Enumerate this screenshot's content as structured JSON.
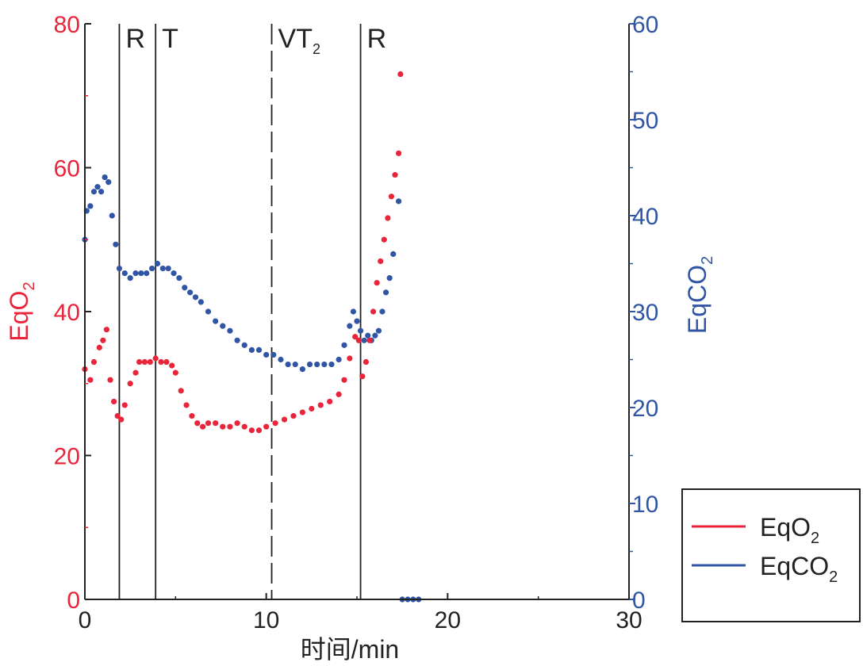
{
  "chart_data": {
    "type": "scatter",
    "xlabel": "时间/min",
    "ylabel_left": {
      "base": "EqO",
      "sub": "2"
    },
    "ylabel_right": {
      "base": "EqCO",
      "sub": "2"
    },
    "xlim": [
      0,
      30
    ],
    "ylim_left": [
      0,
      80
    ],
    "ylim_right": [
      0,
      60
    ],
    "x_ticks": [
      "0",
      "10",
      "20",
      "30"
    ],
    "y_left_ticks": [
      "0",
      "20",
      "40",
      "60",
      "80"
    ],
    "y_right_ticks": [
      "0",
      "10",
      "20",
      "30",
      "40",
      "50",
      "60"
    ],
    "grid": false,
    "legend_position": "bottom-right",
    "colors": {
      "eqo2": "#e8253a",
      "eqco2": "#2f55a4",
      "axis": "#222222"
    },
    "phase_lines": [
      {
        "x": 1.9,
        "style": "solid",
        "label": "R"
      },
      {
        "x": 3.9,
        "style": "solid",
        "label": "T"
      },
      {
        "x": 10.3,
        "style": "dashed",
        "label": "VT",
        "label_sub": "2"
      },
      {
        "x": 15.2,
        "style": "solid",
        "label": "R"
      }
    ],
    "series": [
      {
        "name": "EqO",
        "name_sub": "2",
        "axis": "left",
        "color": "#e8253a",
        "x": [
          0.0,
          0.3,
          0.5,
          0.8,
          1.0,
          1.2,
          1.4,
          1.6,
          1.8,
          2.0,
          2.2,
          2.5,
          2.8,
          3.0,
          3.3,
          3.6,
          3.9,
          4.2,
          4.5,
          4.8,
          5.0,
          5.3,
          5.6,
          5.9,
          6.2,
          6.5,
          6.8,
          7.2,
          7.6,
          8.0,
          8.4,
          8.8,
          9.2,
          9.6,
          10.0,
          10.5,
          11.0,
          11.5,
          12.0,
          12.5,
          13.0,
          13.5,
          14.0,
          14.3,
          14.6,
          14.9,
          15.1,
          15.3,
          15.5,
          15.7,
          15.9,
          16.1,
          16.3,
          16.5,
          16.7,
          16.9,
          17.1,
          17.3,
          17.4
        ],
        "y": [
          32.0,
          30.5,
          33.0,
          35.0,
          36.0,
          37.5,
          30.5,
          27.5,
          25.5,
          25.0,
          27.0,
          30.0,
          31.5,
          33.0,
          33.0,
          33.0,
          33.5,
          33.0,
          33.0,
          32.5,
          31.5,
          29.0,
          27.0,
          25.5,
          24.5,
          24.0,
          24.5,
          24.5,
          24.0,
          24.0,
          24.5,
          24.0,
          23.5,
          23.5,
          24.0,
          24.5,
          25.0,
          25.5,
          26.0,
          26.5,
          27.0,
          27.5,
          28.5,
          30.5,
          33.5,
          36.5,
          36.0,
          31.0,
          33.0,
          36.0,
          40.0,
          44.0,
          47.0,
          50.0,
          53.0,
          56.0,
          59.0,
          62.0,
          73.0
        ]
      },
      {
        "name": "EqCO",
        "name_sub": "2",
        "axis": "right",
        "color": "#2f55a4",
        "x": [
          0.0,
          0.1,
          0.3,
          0.5,
          0.7,
          0.9,
          1.1,
          1.3,
          1.5,
          1.7,
          1.9,
          2.2,
          2.5,
          2.8,
          3.1,
          3.4,
          3.7,
          4.0,
          4.3,
          4.6,
          4.9,
          5.2,
          5.5,
          5.8,
          6.1,
          6.4,
          6.8,
          7.2,
          7.6,
          8.0,
          8.4,
          8.8,
          9.2,
          9.6,
          10.0,
          10.4,
          10.8,
          11.2,
          11.6,
          12.0,
          12.4,
          12.8,
          13.2,
          13.6,
          14.0,
          14.3,
          14.6,
          14.8,
          15.0,
          15.2,
          15.4,
          15.6,
          15.8,
          16.0,
          16.2,
          16.4,
          16.6,
          16.8,
          17.0,
          17.3,
          17.5,
          17.8,
          18.1,
          18.4
        ],
        "y": [
          37.5,
          40.5,
          41.0,
          42.5,
          43.0,
          42.5,
          44.0,
          43.5,
          40.0,
          37.0,
          34.5,
          34.0,
          33.5,
          34.0,
          34.0,
          34.0,
          34.5,
          35.0,
          34.5,
          34.5,
          34.0,
          33.5,
          32.5,
          32.0,
          31.5,
          31.0,
          30.0,
          29.0,
          28.5,
          28.0,
          27.0,
          26.5,
          26.0,
          26.0,
          25.5,
          25.5,
          25.0,
          24.5,
          24.5,
          24.0,
          24.5,
          24.5,
          24.5,
          24.5,
          25.0,
          26.5,
          28.5,
          30.0,
          29.0,
          28.0,
          27.0,
          27.5,
          27.0,
          27.5,
          28.0,
          30.0,
          32.0,
          33.5,
          36.0,
          41.5,
          0.0,
          0.0,
          0.0,
          0.0
        ]
      }
    ]
  }
}
